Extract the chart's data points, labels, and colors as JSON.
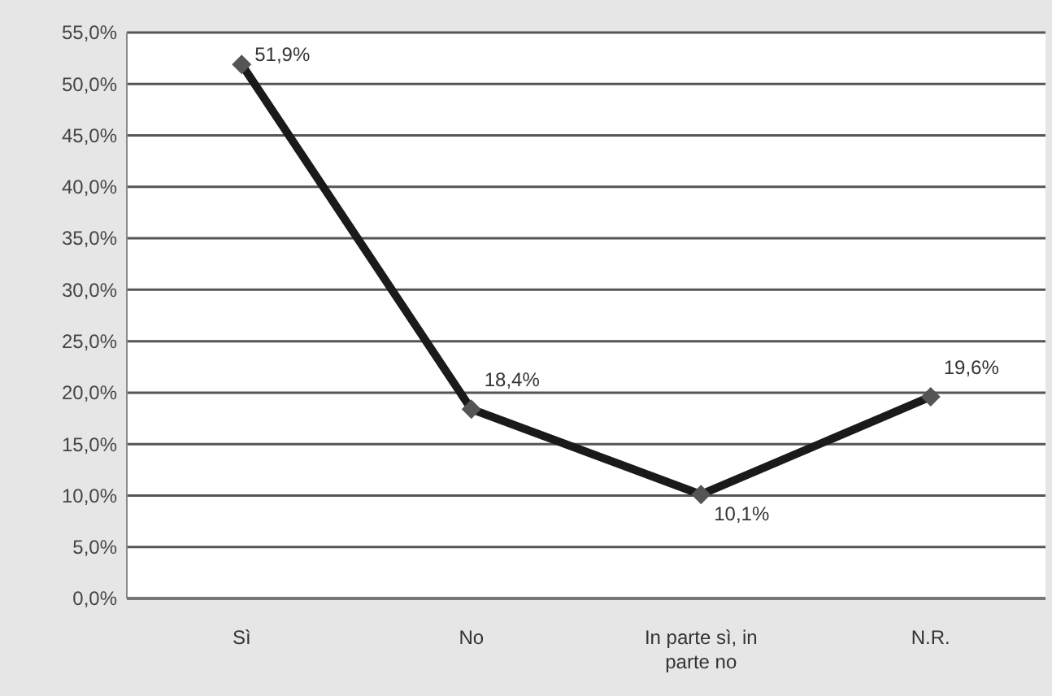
{
  "chart_data": {
    "type": "line",
    "categories": [
      "Sì",
      "No",
      "In parte sì, in parte no",
      "N.R."
    ],
    "series": [
      {
        "color": "#1a1a1a",
        "values": [
          51.9,
          18.4,
          10.1,
          19.6
        ],
        "value_labels": [
          "51,9%",
          "18,4%",
          "10,1%",
          "19,6%"
        ]
      }
    ],
    "ylim": [
      0,
      55
    ],
    "yticks": [
      {
        "value": 0,
        "label": "0,0%"
      },
      {
        "value": 5,
        "label": "5,0%"
      },
      {
        "value": 10,
        "label": "10,0%"
      },
      {
        "value": 15,
        "label": "15,0%"
      },
      {
        "value": 20,
        "label": "20,0%"
      },
      {
        "value": 25,
        "label": "25,0%"
      },
      {
        "value": 30,
        "label": "30,0%"
      },
      {
        "value": 35,
        "label": "35,0%"
      },
      {
        "value": 40,
        "label": "40,0%"
      },
      {
        "value": 45,
        "label": "45,0%"
      },
      {
        "value": 50,
        "label": "50,0%"
      },
      {
        "value": 55,
        "label": "55,0%"
      }
    ],
    "grid": "y",
    "marker": "diamond",
    "line_style": "solid"
  }
}
